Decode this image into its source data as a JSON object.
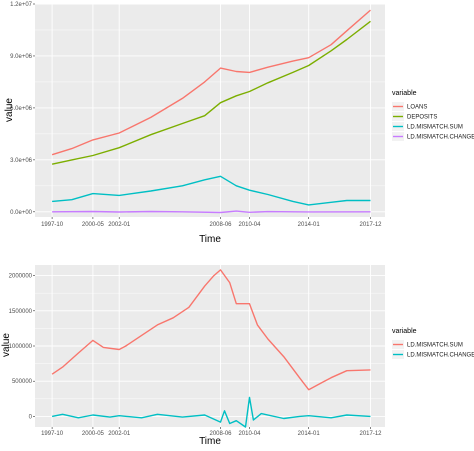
{
  "chart_data": [
    {
      "type": "line",
      "xlabel": "Time",
      "ylabel": "value",
      "x_ticks": [
        "1997-10",
        "2000-05",
        "2002-01",
        "2008-06",
        "2010-04",
        "2014-01",
        "2017-12"
      ],
      "y_ticks": [
        "0.0e+00",
        "3.0e+06",
        "6.0e+06",
        "9.0e+06",
        "1.2e+07"
      ],
      "ylim": [
        -300000,
        12000000
      ],
      "legend_title": "variable",
      "legend_position": "right",
      "series": [
        {
          "name": "LOANS",
          "color": "#F8766D",
          "points": [
            [
              "1997-10",
              3300000
            ],
            [
              "1999-01",
              3650000
            ],
            [
              "2000-05",
              4150000
            ],
            [
              "2002-01",
              4550000
            ],
            [
              "2004-01",
              5450000
            ],
            [
              "2006-01",
              6550000
            ],
            [
              "2007-06",
              7500000
            ],
            [
              "2008-06",
              8300000
            ],
            [
              "2009-06",
              8100000
            ],
            [
              "2010-04",
              8050000
            ],
            [
              "2011-06",
              8350000
            ],
            [
              "2013-01",
              8700000
            ],
            [
              "2014-01",
              8900000
            ],
            [
              "2015-06",
              9650000
            ],
            [
              "2016-06",
              10450000
            ],
            [
              "2017-12",
              11650000
            ]
          ]
        },
        {
          "name": "DEPOSITS",
          "color": "#7CAE00",
          "points": [
            [
              "1997-10",
              2750000
            ],
            [
              "1999-01",
              3000000
            ],
            [
              "2000-05",
              3250000
            ],
            [
              "2002-01",
              3700000
            ],
            [
              "2004-01",
              4450000
            ],
            [
              "2006-01",
              5100000
            ],
            [
              "2007-06",
              5550000
            ],
            [
              "2008-06",
              6300000
            ],
            [
              "2009-06",
              6700000
            ],
            [
              "2010-04",
              6950000
            ],
            [
              "2011-06",
              7450000
            ],
            [
              "2013-01",
              8050000
            ],
            [
              "2014-01",
              8450000
            ],
            [
              "2015-06",
              9300000
            ],
            [
              "2016-06",
              9950000
            ],
            [
              "2017-12",
              11000000
            ]
          ]
        },
        {
          "name": "LD.MISMATCH.SUM",
          "color": "#00BFC4",
          "points": [
            [
              "1997-10",
              600000
            ],
            [
              "1999-01",
              700000
            ],
            [
              "2000-05",
              1050000
            ],
            [
              "2002-01",
              950000
            ],
            [
              "2004-01",
              1200000
            ],
            [
              "2006-01",
              1500000
            ],
            [
              "2007-06",
              1850000
            ],
            [
              "2008-06",
              2050000
            ],
            [
              "2009-06",
              1500000
            ],
            [
              "2010-04",
              1250000
            ],
            [
              "2011-06",
              1000000
            ],
            [
              "2013-01",
              600000
            ],
            [
              "2014-01",
              400000
            ],
            [
              "2015-06",
              550000
            ],
            [
              "2016-06",
              650000
            ],
            [
              "2017-12",
              650000
            ]
          ]
        },
        {
          "name": "LD.MISMATCH.CHANGE",
          "color": "#C77CFF",
          "points": [
            [
              "1997-10",
              0
            ],
            [
              "2000-05",
              20000
            ],
            [
              "2002-01",
              -10000
            ],
            [
              "2004-01",
              15000
            ],
            [
              "2006-01",
              0
            ],
            [
              "2008-06",
              -40000
            ],
            [
              "2009-06",
              40000
            ],
            [
              "2010-04",
              -30000
            ],
            [
              "2011-06",
              10000
            ],
            [
              "2014-01",
              -5000
            ],
            [
              "2017-12",
              0
            ]
          ]
        }
      ]
    },
    {
      "type": "line",
      "xlabel": "Time",
      "ylabel": "value",
      "x_ticks": [
        "1997-10",
        "2000-05",
        "2002-01",
        "2008-06",
        "2010-04",
        "2014-01",
        "2017-12"
      ],
      "y_ticks": [
        "0",
        "500000",
        "1000000",
        "1500000",
        "2000000"
      ],
      "ylim": [
        -150000,
        2150000
      ],
      "legend_title": "variable",
      "legend_position": "right",
      "series": [
        {
          "name": "LD.MISMATCH.SUM",
          "color": "#F8766D",
          "points": [
            [
              "1997-10",
              600000
            ],
            [
              "1998-06",
              700000
            ],
            [
              "1999-06",
              900000
            ],
            [
              "2000-05",
              1080000
            ],
            [
              "2001-01",
              980000
            ],
            [
              "2002-01",
              950000
            ],
            [
              "2002-06",
              1000000
            ],
            [
              "2003-06",
              1150000
            ],
            [
              "2004-06",
              1300000
            ],
            [
              "2005-06",
              1400000
            ],
            [
              "2006-06",
              1550000
            ],
            [
              "2007-06",
              1850000
            ],
            [
              "2008-01",
              2000000
            ],
            [
              "2008-06",
              2080000
            ],
            [
              "2009-01",
              1900000
            ],
            [
              "2009-06",
              1600000
            ],
            [
              "2010-04",
              1600000
            ],
            [
              "2010-10",
              1300000
            ],
            [
              "2011-06",
              1100000
            ],
            [
              "2012-06",
              850000
            ],
            [
              "2013-06",
              550000
            ],
            [
              "2014-01",
              380000
            ],
            [
              "2014-08",
              450000
            ],
            [
              "2015-06",
              550000
            ],
            [
              "2016-06",
              650000
            ],
            [
              "2017-12",
              660000
            ]
          ]
        },
        {
          "name": "LD.MISMATCH.CHANGE",
          "color": "#00BFC4",
          "points": [
            [
              "1997-10",
              0
            ],
            [
              "1998-06",
              30000
            ],
            [
              "1999-06",
              -20000
            ],
            [
              "2000-05",
              20000
            ],
            [
              "2001-06",
              -10000
            ],
            [
              "2002-01",
              10000
            ],
            [
              "2003-06",
              -20000
            ],
            [
              "2004-06",
              30000
            ],
            [
              "2006-01",
              -10000
            ],
            [
              "2007-06",
              20000
            ],
            [
              "2008-06",
              -80000
            ],
            [
              "2008-09",
              80000
            ],
            [
              "2009-01",
              -100000
            ],
            [
              "2009-06",
              -60000
            ],
            [
              "2010-01",
              -150000
            ],
            [
              "2010-04",
              270000
            ],
            [
              "2010-07",
              -50000
            ],
            [
              "2011-01",
              40000
            ],
            [
              "2012-06",
              -30000
            ],
            [
              "2013-06",
              0
            ],
            [
              "2014-01",
              10000
            ],
            [
              "2015-06",
              -20000
            ],
            [
              "2016-06",
              20000
            ],
            [
              "2017-12",
              0
            ]
          ]
        }
      ]
    }
  ]
}
